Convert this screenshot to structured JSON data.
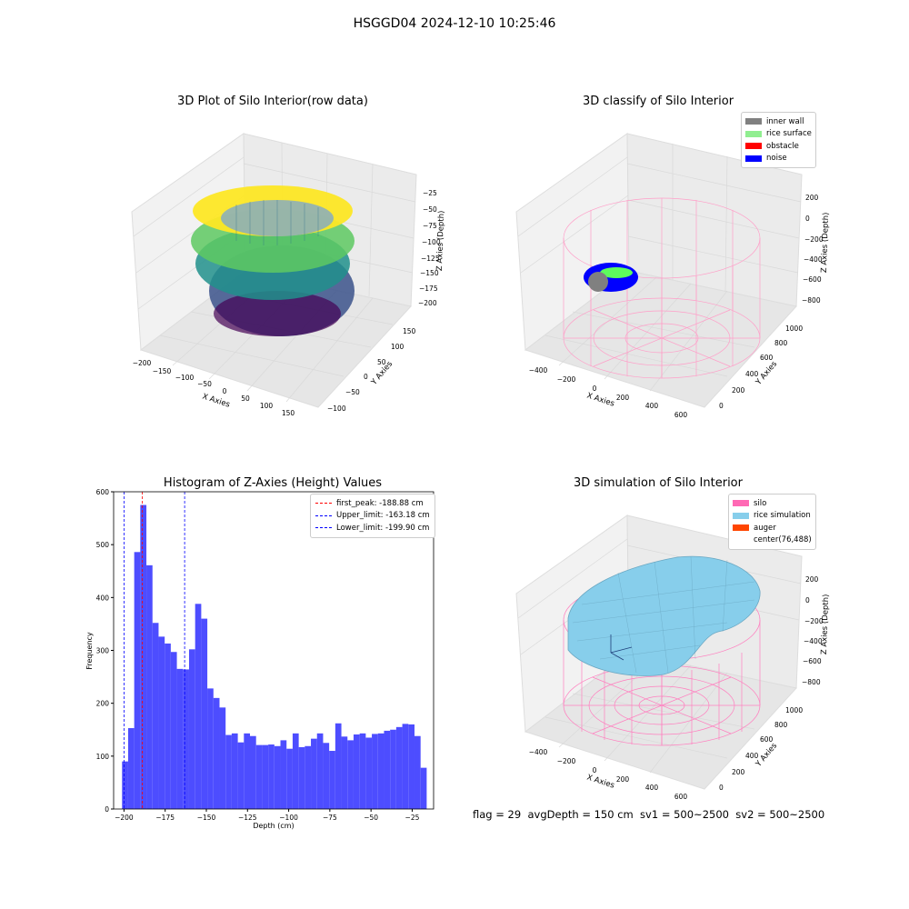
{
  "suptitle": "HSGGD04 2024-12-10 10:25:46",
  "footer": "flag = 29  avgDepth = 150 cm  sv1 = 500~2500  sv2 = 500~2500",
  "chart_data": [
    {
      "type": "scatter",
      "title": "3D Plot of Silo Interior(row data)",
      "xlabel": "X Axies",
      "ylabel": "Y Axies",
      "zlabel": "Z Axies (Depth)",
      "xticks": [
        "−200",
        "−150",
        "−100",
        "−50",
        "0",
        "50",
        "100",
        "150"
      ],
      "yticks": [
        "−100",
        "−50",
        "0",
        "50",
        "100",
        "150"
      ],
      "zticks": [
        "−25",
        "−50",
        "−75",
        "−100",
        "−125",
        "−150",
        "−175",
        "−200"
      ],
      "colormap": "viridis"
    },
    {
      "type": "scatter",
      "title": "3D classify of Silo Interior",
      "xlabel": "X Axies",
      "ylabel": "Y Axies",
      "zlabel": "Z Axies (Depth)",
      "xticks": [
        "−400",
        "−200",
        "0",
        "200",
        "400",
        "600"
      ],
      "yticks": [
        "0",
        "200",
        "400",
        "600",
        "800",
        "1000"
      ],
      "zticks": [
        "200",
        "0",
        "−200",
        "−400",
        "−600",
        "−800"
      ],
      "legend": [
        {
          "label": "inner wall",
          "color": "#808080"
        },
        {
          "label": "rice surface",
          "color": "#90ee90"
        },
        {
          "label": "obstacle",
          "color": "#ff0000"
        },
        {
          "label": "noise",
          "color": "#0000ff"
        }
      ]
    },
    {
      "type": "bar",
      "title": "Histogram of Z-Axies (Height) Values",
      "xlabel": "Depth (cm)",
      "ylabel": "Frequency",
      "xlim": [
        -206.3,
        -12.0
      ],
      "ylim": [
        0,
        600
      ],
      "xticks": [
        -200,
        -175,
        -150,
        -125,
        -100,
        -75,
        -50,
        -25
      ],
      "xtick_labels": [
        "−200",
        "−175",
        "−150",
        "−125",
        "−100",
        "−75",
        "−50",
        "−25"
      ],
      "yticks": [
        0,
        100,
        200,
        300,
        400,
        500,
        600
      ],
      "bin_start": -201.2,
      "bin_width": 3.7,
      "values": [
        90,
        153,
        486,
        575,
        461,
        352,
        326,
        313,
        297,
        265,
        264,
        302,
        388,
        360,
        228,
        210,
        192,
        140,
        143,
        126,
        143,
        138,
        121,
        121,
        122,
        119,
        130,
        114,
        143,
        117,
        119,
        133,
        143,
        125,
        110,
        162,
        137,
        130,
        141,
        143,
        135,
        142,
        143,
        148,
        150,
        155,
        161,
        160,
        138,
        78
      ],
      "bar_color": "#4d4dff",
      "lines": [
        {
          "label": "first_peak: -188.88 cm",
          "x": -188.88,
          "color": "#ff0000"
        },
        {
          "label": "Upper_limit: -163.18 cm",
          "x": -163.18,
          "color": "#0000ff"
        },
        {
          "label": "Lower_limit: -199.90 cm",
          "x": -199.9,
          "color": "#0000ff"
        }
      ]
    },
    {
      "type": "surface",
      "title": "3D simulation of Silo Interior",
      "xlabel": "X Axies",
      "ylabel": "Y Axies",
      "zlabel": "Z Axies (Depth)",
      "xticks": [
        "−400",
        "−200",
        "0",
        "200",
        "400",
        "600"
      ],
      "yticks": [
        "0",
        "200",
        "400",
        "600",
        "800",
        "1000"
      ],
      "zticks": [
        "200",
        "0",
        "−200",
        "−400",
        "−600",
        "−800"
      ],
      "legend": [
        {
          "label": "silo",
          "color": "#ff69b4"
        },
        {
          "label": "rice simulation",
          "color": "#87ceeb"
        },
        {
          "label": "auger",
          "color": "#ff4500"
        },
        {
          "label": "center(76,488)",
          "color": ""
        }
      ]
    }
  ]
}
